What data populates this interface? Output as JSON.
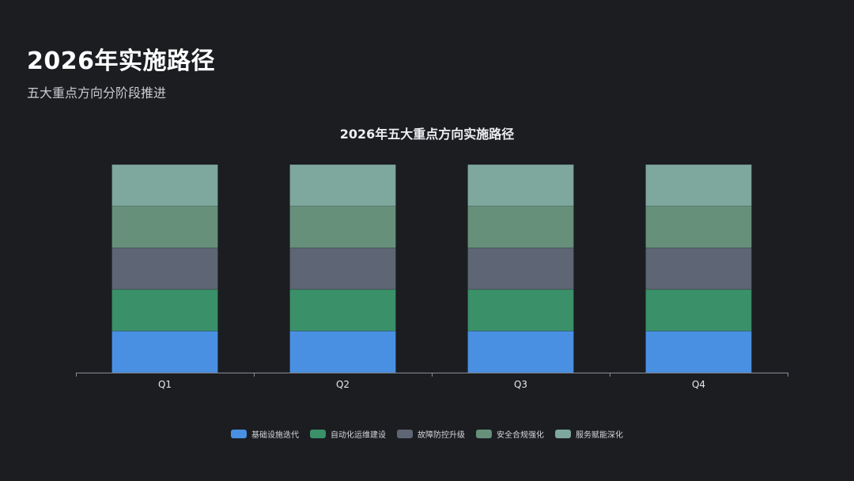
{
  "header": {
    "title": "2026年实施路径",
    "subtitle": "五大重点方向分阶段推进"
  },
  "chart_data": {
    "type": "bar",
    "stacked": true,
    "title": "2026年五大重点方向实施路径",
    "categories": [
      "Q1",
      "Q2",
      "Q3",
      "Q4"
    ],
    "series": [
      {
        "name": "基础设施迭代",
        "color": "#4a90e2",
        "values": [
          1,
          1,
          1,
          1
        ]
      },
      {
        "name": "自动化运维建设",
        "color": "#3a9068",
        "values": [
          1,
          1,
          1,
          1
        ]
      },
      {
        "name": "故障防控升级",
        "color": "#5e6675",
        "values": [
          1,
          1,
          1,
          1
        ]
      },
      {
        "name": "安全合规强化",
        "color": "#66907a",
        "values": [
          1,
          1,
          1,
          1
        ]
      },
      {
        "name": "服务赋能深化",
        "color": "#7ea79e",
        "values": [
          1,
          1,
          1,
          1
        ]
      }
    ],
    "ylim": [
      0,
      5
    ],
    "grid": false,
    "legend_position": "bottom"
  }
}
